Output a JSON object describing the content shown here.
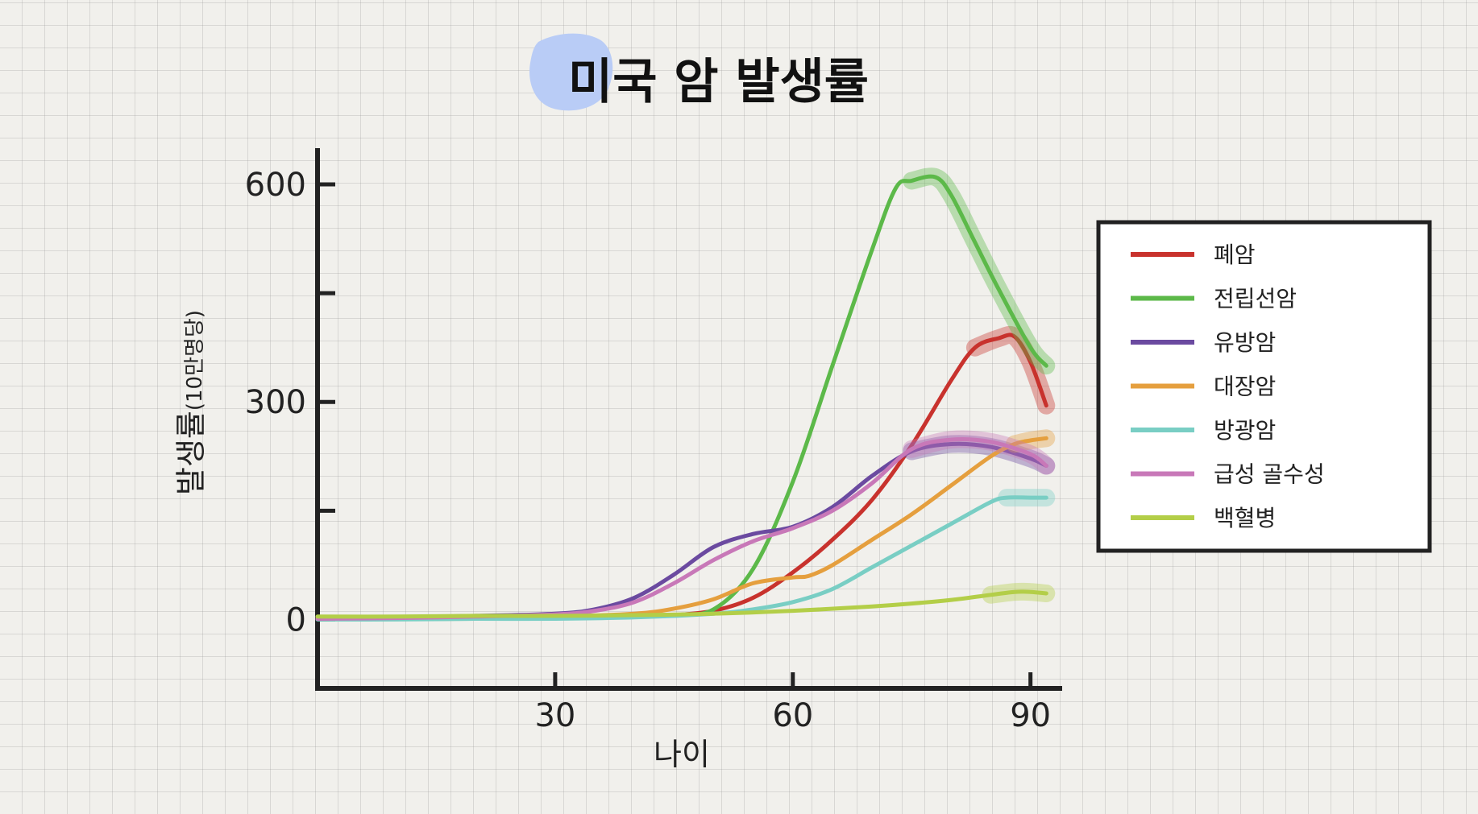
{
  "chart_data": {
    "type": "line",
    "title": "미국 암 발생률",
    "xlabel": "나이",
    "ylabel": "발생률",
    "ylabel_unit": "(10만명당)",
    "xlim": [
      0,
      94
    ],
    "ylim": [
      -95,
      650
    ],
    "x_ticks": [
      30,
      60,
      90
    ],
    "y_ticks": [
      0,
      300,
      600
    ],
    "legend_position": "right",
    "grid": false,
    "series": [
      {
        "name": "폐암",
        "color": "#c8322d",
        "highlight_from": 83,
        "x": [
          0,
          10,
          20,
          30,
          40,
          45,
          50,
          55,
          60,
          65,
          70,
          75,
          80,
          83,
          86,
          88,
          90,
          92
        ],
        "y": [
          2,
          1,
          2,
          3,
          4,
          6,
          12,
          30,
          65,
          110,
          165,
          240,
          330,
          375,
          388,
          390,
          355,
          295
        ]
      },
      {
        "name": "전립선암",
        "color": "#5cb949",
        "highlight_from": 75,
        "x": [
          0,
          10,
          20,
          30,
          40,
          45,
          50,
          55,
          60,
          65,
          70,
          73,
          75,
          78,
          80,
          83,
          86,
          90,
          92
        ],
        "y": [
          1,
          1,
          1,
          2,
          4,
          6,
          14,
          70,
          190,
          350,
          510,
          595,
          605,
          610,
          585,
          520,
          455,
          375,
          350
        ]
      },
      {
        "name": "유방암",
        "color": "#6b4aa0",
        "highlight_from": 75,
        "x": [
          0,
          10,
          20,
          30,
          35,
          40,
          45,
          50,
          55,
          60,
          65,
          70,
          75,
          80,
          85,
          90,
          92
        ],
        "y": [
          2,
          3,
          5,
          8,
          14,
          30,
          62,
          100,
          118,
          128,
          155,
          198,
          232,
          242,
          238,
          222,
          212
        ]
      },
      {
        "name": "대장암",
        "color": "#e59f3e",
        "highlight_from": 86,
        "x": [
          0,
          10,
          20,
          30,
          40,
          45,
          50,
          55,
          60,
          62,
          65,
          70,
          75,
          80,
          85,
          88,
          90,
          92
        ],
        "y": [
          1,
          1,
          2,
          4,
          8,
          15,
          28,
          50,
          58,
          60,
          75,
          110,
          145,
          185,
          225,
          242,
          247,
          250
        ]
      },
      {
        "name": "방광암",
        "color": "#79cec4",
        "highlight_from": 86,
        "x": [
          0,
          10,
          20,
          30,
          40,
          50,
          55,
          60,
          65,
          70,
          75,
          80,
          85,
          87,
          90,
          92
        ],
        "y": [
          0,
          0,
          1,
          1,
          3,
          8,
          14,
          24,
          42,
          72,
          102,
          132,
          162,
          168,
          168,
          168
        ]
      },
      {
        "name": "급성 골수성",
        "color": "#c878b8",
        "highlight_from": 75,
        "x": [
          0,
          10,
          20,
          30,
          35,
          40,
          45,
          50,
          55,
          60,
          65,
          70,
          75,
          80,
          85,
          90,
          92
        ],
        "y": [
          1,
          2,
          4,
          7,
          12,
          24,
          50,
          82,
          108,
          126,
          150,
          188,
          235,
          248,
          245,
          228,
          212
        ]
      },
      {
        "name": "백혈병",
        "color": "#b3ce48",
        "highlight_from": 85,
        "x": [
          0,
          10,
          20,
          30,
          40,
          50,
          60,
          70,
          75,
          80,
          85,
          88,
          90,
          92
        ],
        "y": [
          4,
          4,
          5,
          5,
          6,
          8,
          12,
          18,
          22,
          27,
          34,
          38,
          38,
          36
        ]
      }
    ]
  }
}
